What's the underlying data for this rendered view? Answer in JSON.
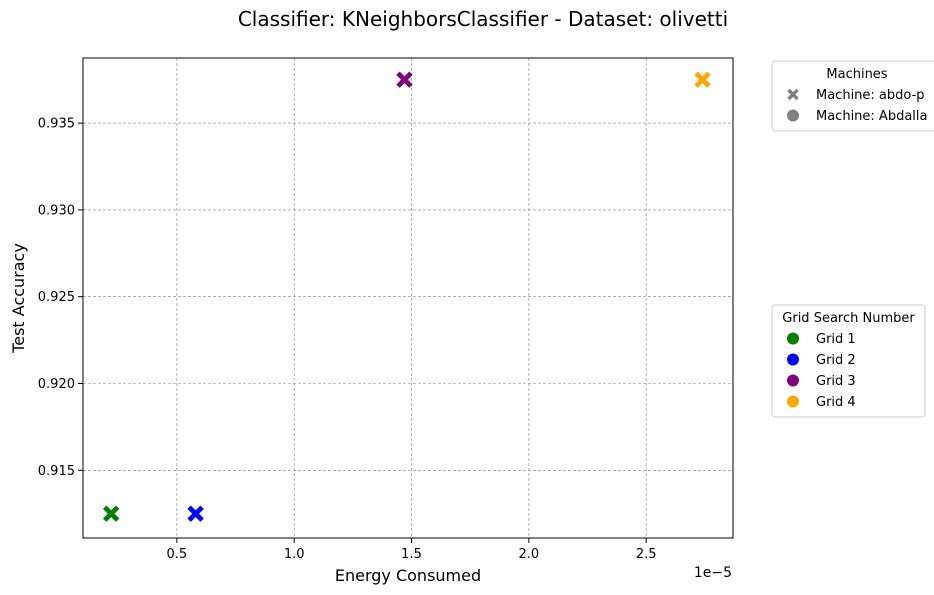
{
  "chart_data": {
    "type": "scatter",
    "title": "Classifier: KNeighborsClassifier - Dataset: olivetti",
    "xlabel": "Energy Consumed",
    "ylabel": "Test Accuracy",
    "x_offset_label": "1e−5",
    "x_scale": 1e-05,
    "xlim": [
      0.1,
      2.87
    ],
    "ylim": [
      0.9111,
      0.93875
    ],
    "x_ticks": [
      0.5,
      1.0,
      1.5,
      2.0,
      2.5
    ],
    "x_tick_labels": [
      "0.5",
      "1.0",
      "1.5",
      "2.0",
      "2.5"
    ],
    "y_ticks": [
      0.915,
      0.92,
      0.925,
      0.93,
      0.935
    ],
    "y_tick_labels": [
      "0.915",
      "0.920",
      "0.925",
      "0.930",
      "0.935"
    ],
    "grid": true,
    "points": [
      {
        "x": 0.22,
        "y": 0.9125,
        "grid": "Grid 1",
        "machine": "Machine: abdo-p",
        "color": "#008000",
        "marker": "x"
      },
      {
        "x": 0.58,
        "y": 0.9125,
        "grid": "Grid 2",
        "machine": "Machine: abdo-p",
        "color": "#0000ff",
        "marker": "x"
      },
      {
        "x": 1.47,
        "y": 0.9375,
        "grid": "Grid 3",
        "machine": "Machine: abdo-p",
        "color": "#800080",
        "marker": "x"
      },
      {
        "x": 2.74,
        "y": 0.9375,
        "grid": "Grid 4",
        "machine": "Machine: abdo-p",
        "color": "#ffa500",
        "marker": "x"
      }
    ],
    "legend_machines": {
      "title": "Machines",
      "placement": "outside top-right",
      "entries": [
        {
          "label": "Machine: abdo-p",
          "marker": "x",
          "color": "#808080"
        },
        {
          "label": "Machine: Abdalla",
          "marker": "o",
          "color": "#808080"
        }
      ]
    },
    "legend_grids": {
      "title": "Grid Search Number",
      "placement": "outside center-right",
      "entries": [
        {
          "label": "Grid 1",
          "marker": "o",
          "color": "#008000"
        },
        {
          "label": "Grid 2",
          "marker": "o",
          "color": "#0000ff"
        },
        {
          "label": "Grid 3",
          "marker": "o",
          "color": "#800080"
        },
        {
          "label": "Grid 4",
          "marker": "o",
          "color": "#ffa500"
        }
      ]
    }
  }
}
